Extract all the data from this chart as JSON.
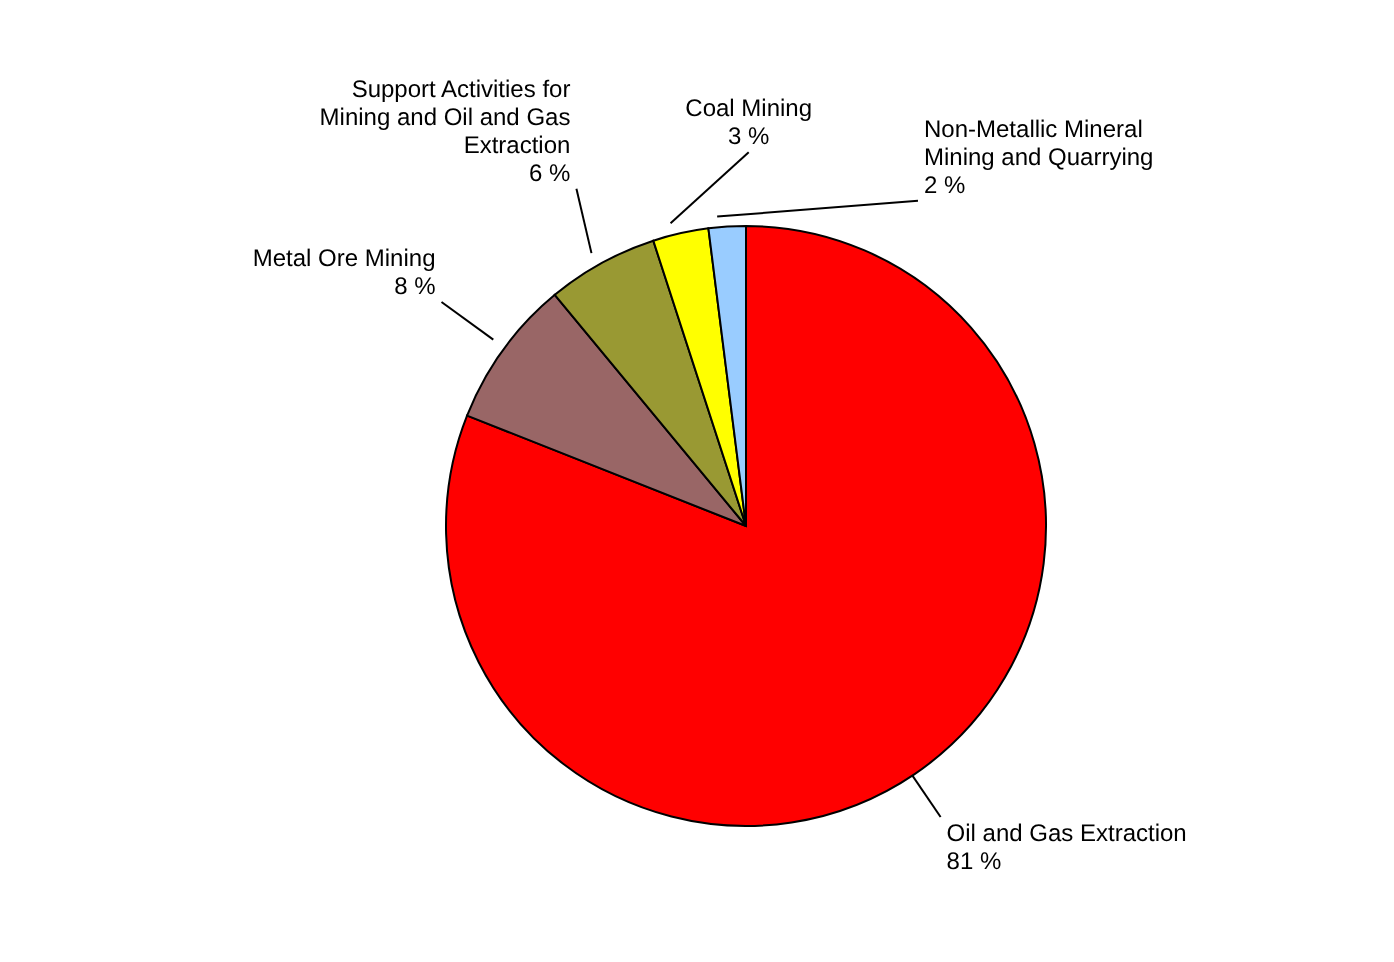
{
  "chart_data": {
    "type": "pie",
    "categories": [
      "Oil and Gas Extraction",
      "Metal Ore Mining",
      "Support Activities for Mining and Oil and Gas Extraction",
      "Coal Mining",
      "Non-Metallic Mineral Mining and Quarrying"
    ],
    "values": [
      81,
      8,
      6,
      3,
      2
    ],
    "value_labels": [
      "81 %",
      "8 %",
      "6 %",
      "3 %",
      "2 %"
    ],
    "colors": [
      "#ff0000",
      "#996666",
      "#999933",
      "#ffff00",
      "#99ccff"
    ]
  }
}
